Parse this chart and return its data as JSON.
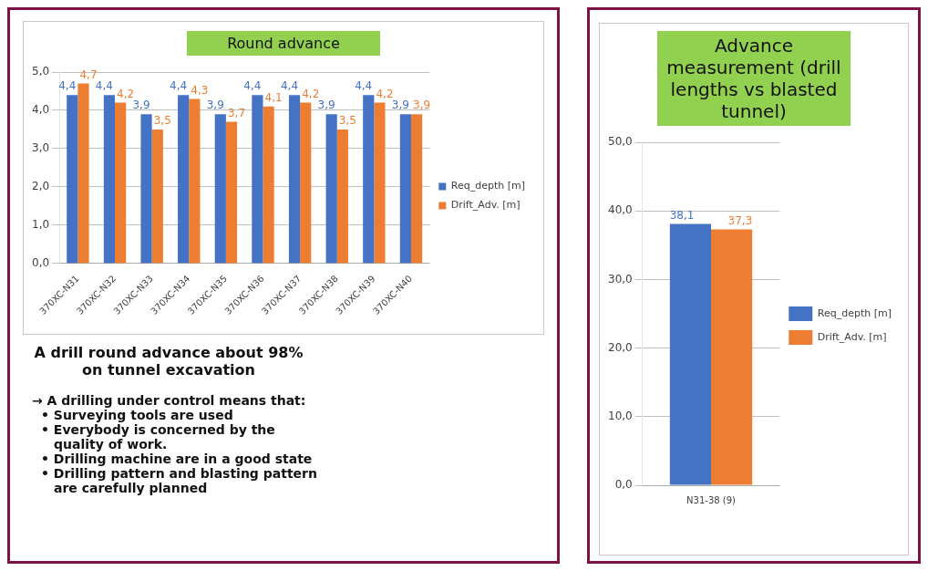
{
  "chart_data": [
    {
      "type": "bar",
      "title": "Round advance",
      "categories": [
        "370XC-N31",
        "370XC-N32",
        "370XC-N33",
        "370XC-N34",
        "370XC-N35",
        "370XC-N36",
        "370XC-N37",
        "370XC-N38",
        "370XC-N39",
        "370XC-N40"
      ],
      "series": [
        {
          "name": "Req_depth [m]",
          "color": "#4472c4",
          "values": [
            4.4,
            4.4,
            3.9,
            4.4,
            3.9,
            4.4,
            4.4,
            3.9,
            4.4,
            3.9
          ],
          "value_labels": [
            "4,4",
            "4,4",
            "3,9",
            "4,4",
            "3,9",
            "4,4",
            "4,4",
            "3,9",
            "4,4",
            "3,9"
          ]
        },
        {
          "name": "Drift_Adv. [m]",
          "color": "#ed7d31",
          "values": [
            4.7,
            4.2,
            3.5,
            4.3,
            3.7,
            4.1,
            4.2,
            3.5,
            4.2,
            3.9
          ],
          "value_labels": [
            "4,7",
            "4,2",
            "3,5",
            "4,3",
            "3,7",
            "4,1",
            "4,2",
            "3,5",
            "4,2",
            "3,9"
          ]
        }
      ],
      "ylim": [
        0,
        5
      ],
      "yticks": [
        {
          "value": 0,
          "label": "0,0"
        },
        {
          "value": 1,
          "label": "1,0"
        },
        {
          "value": 2,
          "label": "2,0"
        },
        {
          "value": 3,
          "label": "3,0"
        },
        {
          "value": 4,
          "label": "4,0"
        },
        {
          "value": 5,
          "label": "5,0"
        }
      ],
      "grid": "y",
      "legend": "right",
      "annotations": [
        "A drill round advance about 98% on tunnel excavation",
        "→ A drilling under control means that:",
        "• Surveying tools are used",
        "• Everybody is concerned by the quality of work.",
        "• Drilling machine are in a good state",
        "• Drilling pattern and blasting pattern are carefully planned"
      ]
    },
    {
      "type": "bar",
      "title": "Advance measurement (drill lengths vs blasted tunnel)",
      "categories": [
        "N31-38 (9)"
      ],
      "series": [
        {
          "name": "Req_depth [m]",
          "color": "#4472c4",
          "values": [
            38.1
          ],
          "value_labels": [
            "38,1"
          ]
        },
        {
          "name": "Drift_Adv. [m]",
          "color": "#ed7d31",
          "values": [
            37.3
          ],
          "value_labels": [
            "37,3"
          ]
        }
      ],
      "ylim": [
        0,
        50
      ],
      "yticks": [
        {
          "value": 0,
          "label": "0,0"
        },
        {
          "value": 10,
          "label": "10,0"
        },
        {
          "value": 20,
          "label": "20,0"
        },
        {
          "value": 30,
          "label": "30,0"
        },
        {
          "value": 40,
          "label": "40,0"
        },
        {
          "value": 50,
          "label": "50,0"
        }
      ],
      "grid": "y",
      "legend": "right"
    }
  ]
}
